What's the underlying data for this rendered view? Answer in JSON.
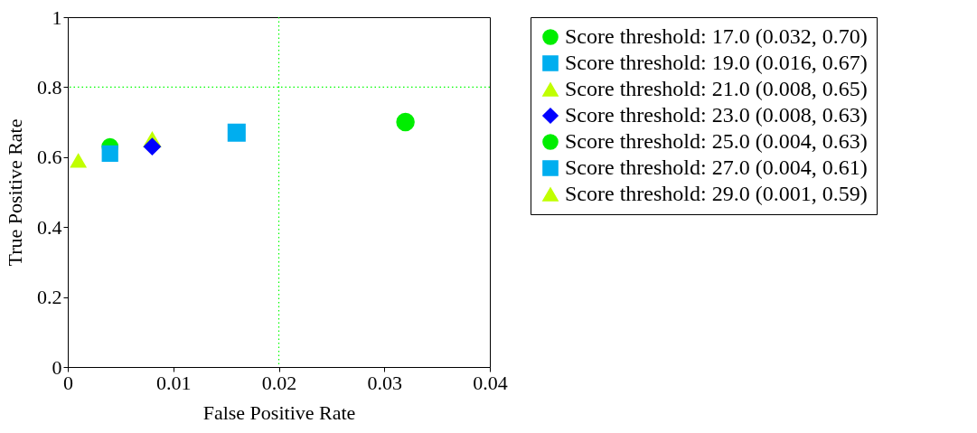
{
  "chart_data": {
    "type": "scatter",
    "xlabel": "False Positive Rate",
    "ylabel": "True Positive Rate",
    "xlim": [
      0,
      0.04
    ],
    "xticks": [
      0,
      0.01,
      0.02,
      0.03,
      0.04
    ],
    "ylim": [
      0,
      1
    ],
    "yticks": [
      0,
      0.2,
      0.4,
      0.6,
      0.8,
      1
    ],
    "legend": "right",
    "grid": false,
    "ref_lines": [
      {
        "axis": "x",
        "value": 0.02,
        "color": "#00ff00",
        "line_style": "dotted"
      },
      {
        "axis": "y",
        "value": 0.8,
        "color": "#00ff00",
        "line_style": "dotted"
      }
    ],
    "series": [
      {
        "name": "Score threshold: 17.0 (0.032, 0.70)",
        "color": "#00ee00",
        "marker": "circle",
        "x": [
          0.032
        ],
        "values": [
          0.7
        ]
      },
      {
        "name": "Score threshold: 19.0 (0.016, 0.67)",
        "color": "#00aeef",
        "marker": "square",
        "x": [
          0.016
        ],
        "values": [
          0.67
        ]
      },
      {
        "name": "Score threshold: 21.0 (0.008, 0.65)",
        "color": "#c0ff00",
        "marker": "triangle",
        "x": [
          0.008
        ],
        "values": [
          0.65
        ]
      },
      {
        "name": "Score threshold: 23.0 (0.008, 0.63)",
        "color": "#0000ff",
        "marker": "diamond",
        "x": [
          0.008
        ],
        "values": [
          0.63
        ]
      },
      {
        "name": "Score threshold: 25.0 (0.004, 0.63)",
        "color": "#00ee00",
        "marker": "circle",
        "x": [
          0.004
        ],
        "values": [
          0.63
        ]
      },
      {
        "name": "Score threshold: 27.0 (0.004, 0.61)",
        "color": "#00aeef",
        "marker": "square",
        "x": [
          0.004
        ],
        "values": [
          0.61
        ]
      },
      {
        "name": "Score threshold: 29.0 (0.001, 0.59)",
        "color": "#c0ff00",
        "marker": "triangle",
        "x": [
          0.001
        ],
        "values": [
          0.59
        ]
      }
    ]
  }
}
